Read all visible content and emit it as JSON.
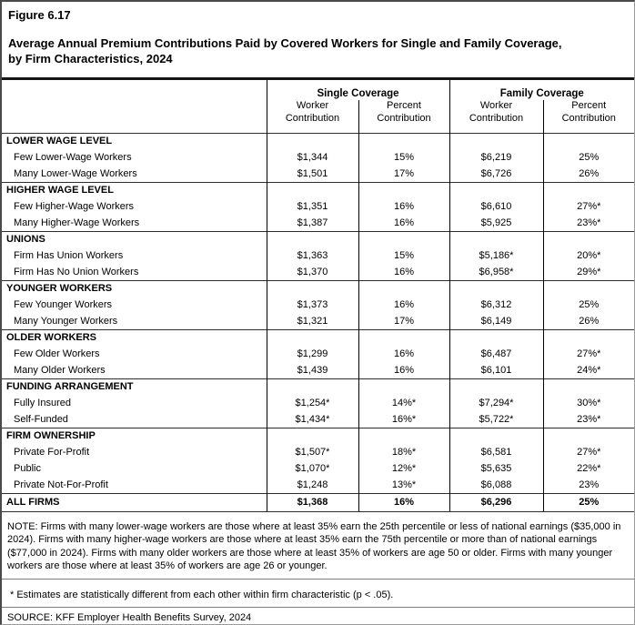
{
  "page": {
    "figure_label": "Figure 6.17",
    "title": "Average Annual Premium Contributions Paid by Covered Workers for Single and Family Coverage, by Firm Characteristics, 2024"
  },
  "table": {
    "column_groups": {
      "single": "Single Coverage",
      "family": "Family Coverage"
    },
    "sub_headers": {
      "worker": "Worker Contribution",
      "percent": "Percent Contribution"
    },
    "sections": [
      {
        "header": "LOWER WAGE LEVEL",
        "rows": [
          {
            "label": "Few Lower-Wage Workers",
            "values": [
              "$1,344",
              "15%",
              "$6,219",
              "25%"
            ]
          },
          {
            "label": "Many Lower-Wage Workers",
            "values": [
              "$1,501",
              "17%",
              "$6,726",
              "26%"
            ]
          }
        ]
      },
      {
        "header": "HIGHER WAGE LEVEL",
        "rows": [
          {
            "label": "Few Higher-Wage Workers",
            "values": [
              "$1,351",
              "16%",
              "$6,610",
              "27%*"
            ]
          },
          {
            "label": "Many Higher-Wage Workers",
            "values": [
              "$1,387",
              "16%",
              "$5,925",
              "23%*"
            ]
          }
        ]
      },
      {
        "header": "UNIONS",
        "rows": [
          {
            "label": "Firm Has Union Workers",
            "values": [
              "$1,363",
              "15%",
              "$5,186*",
              "20%*"
            ]
          },
          {
            "label": "Firm Has No Union Workers",
            "values": [
              "$1,370",
              "16%",
              "$6,958*",
              "29%*"
            ]
          }
        ]
      },
      {
        "header": "YOUNGER WORKERS",
        "rows": [
          {
            "label": "Few Younger Workers",
            "values": [
              "$1,373",
              "16%",
              "$6,312",
              "25%"
            ]
          },
          {
            "label": "Many Younger Workers",
            "values": [
              "$1,321",
              "17%",
              "$6,149",
              "26%"
            ]
          }
        ]
      },
      {
        "header": "OLDER WORKERS",
        "rows": [
          {
            "label": "Few Older Workers",
            "values": [
              "$1,299",
              "16%",
              "$6,487",
              "27%*"
            ]
          },
          {
            "label": "Many Older Workers",
            "values": [
              "$1,439",
              "16%",
              "$6,101",
              "24%*"
            ]
          }
        ]
      },
      {
        "header": "FUNDING ARRANGEMENT",
        "rows": [
          {
            "label": "Fully Insured",
            "values": [
              "$1,254*",
              "14%*",
              "$7,294*",
              "30%*"
            ]
          },
          {
            "label": "Self-Funded",
            "values": [
              "$1,434*",
              "16%*",
              "$5,722*",
              "23%*"
            ]
          }
        ]
      },
      {
        "header": "FIRM OWNERSHIP",
        "rows": [
          {
            "label": "Private For-Profit",
            "values": [
              "$1,507*",
              "18%*",
              "$6,581",
              "27%*"
            ]
          },
          {
            "label": "Public",
            "values": [
              "$1,070*",
              "12%*",
              "$5,635",
              "22%*"
            ]
          },
          {
            "label": "Private Not-For-Profit",
            "values": [
              "$1,248",
              "13%*",
              "$6,088",
              "23%"
            ]
          }
        ]
      }
    ],
    "total_row": {
      "label": "ALL FIRMS",
      "values": [
        "$1,368",
        "16%",
        "$6,296",
        "25%"
      ]
    }
  },
  "footer": {
    "note": "NOTE: Firms with many lower-wage workers are those where at least 35% earn the 25th percentile or less of national earnings ($35,000 in 2024). Firms with many higher-wage workers are those where at least 35% earn the 75th percentile or more than of national earnings ($77,000 in 2024). Firms with many older workers are those where at least 35% of workers are age 50 or older. Firms with many younger workers are those where at least 35% of workers are age 26 or younger.",
    "footnote": "* Estimates are statistically different from each other within firm characteristic (p < .05).",
    "source": "SOURCE: KFF Employer Health Benefits Survey, 2024"
  }
}
